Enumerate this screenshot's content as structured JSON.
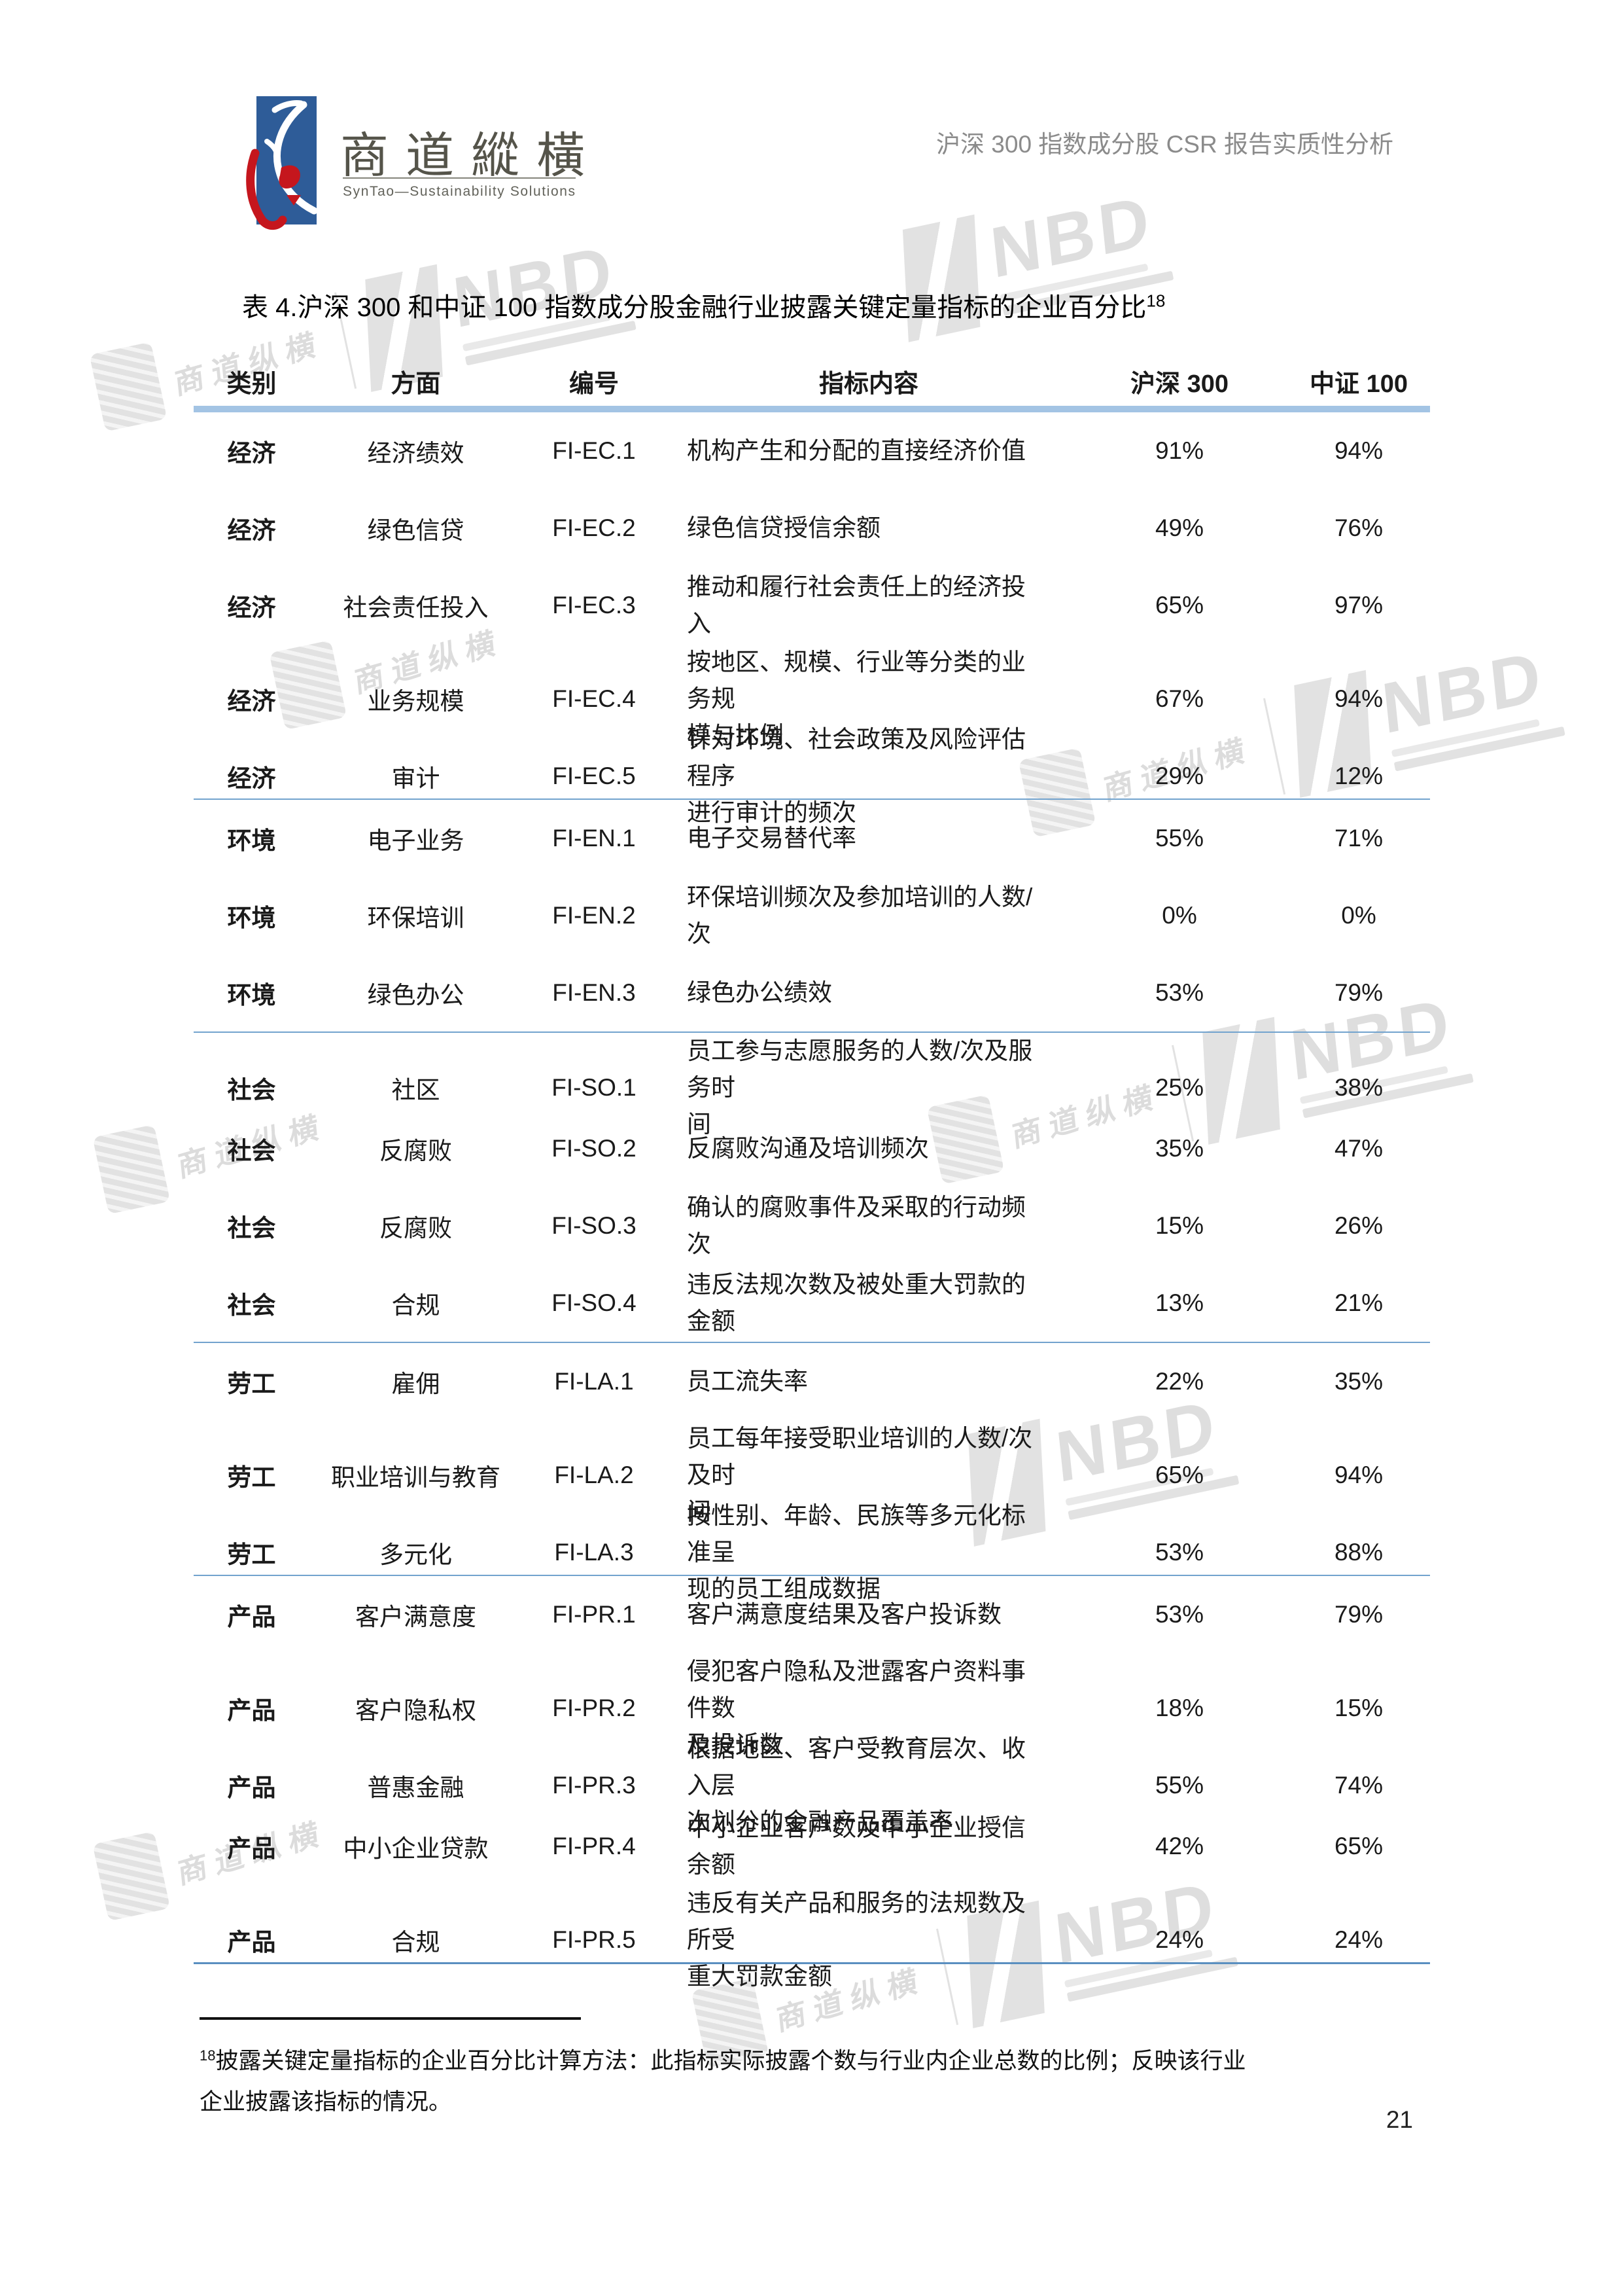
{
  "header": {
    "logo_cn": "商道縱橫",
    "logo_en": "SynTao—Sustainability Solutions",
    "doc_title": "沪深 300 指数成分股 CSR 报告实质性分析"
  },
  "table_title": {
    "text": "表 4.沪深 300 和中证 100 指数成分股金融行业披露关键定量指标的企业百分比",
    "footnote_ref": "18"
  },
  "table": {
    "columns": [
      "类别",
      "方面",
      "编号",
      "指标内容",
      "沪深 300",
      "中证 100"
    ],
    "sections": [
      {
        "name": "经济",
        "rows": [
          {
            "category": "经济",
            "aspect": "经济绩效",
            "code": "FI-EC.1",
            "indicator": "机构产生和分配的直接经济价值",
            "hs300": "91%",
            "zz100": "94%"
          },
          {
            "category": "经济",
            "aspect": "绿色信贷",
            "code": "FI-EC.2",
            "indicator": "绿色信贷授信余额",
            "hs300": "49%",
            "zz100": "76%"
          },
          {
            "category": "经济",
            "aspect": "社会责任投入",
            "code": "FI-EC.3",
            "indicator": "推动和履行社会责任上的经济投入",
            "hs300": "65%",
            "zz100": "97%"
          },
          {
            "category": "经济",
            "aspect": "业务规模",
            "code": "FI-EC.4",
            "indicator": "按地区、规模、行业等分类的业务规\n模与比例",
            "hs300": "67%",
            "zz100": "94%"
          },
          {
            "category": "经济",
            "aspect": "审计",
            "code": "FI-EC.5",
            "indicator": "针对环境、社会政策及风险评估程序\n进行审计的频次",
            "hs300": "29%",
            "zz100": "12%"
          }
        ]
      },
      {
        "name": "环境",
        "rows": [
          {
            "category": "环境",
            "aspect": "电子业务",
            "code": "FI-EN.1",
            "indicator": "电子交易替代率",
            "hs300": "55%",
            "zz100": "71%"
          },
          {
            "category": "环境",
            "aspect": "环保培训",
            "code": "FI-EN.2",
            "indicator": "环保培训频次及参加培训的人数/次",
            "hs300": "0%",
            "zz100": "0%"
          },
          {
            "category": "环境",
            "aspect": "绿色办公",
            "code": "FI-EN.3",
            "indicator": "绿色办公绩效",
            "hs300": "53%",
            "zz100": "79%"
          }
        ]
      },
      {
        "name": "社会",
        "rows": [
          {
            "category": "社会",
            "aspect": "社区",
            "code": "FI-SO.1",
            "indicator": "员工参与志愿服务的人数/次及服务时\n间",
            "hs300": "25%",
            "zz100": "38%"
          },
          {
            "category": "社会",
            "aspect": "反腐败",
            "code": "FI-SO.2",
            "indicator": "反腐败沟通及培训频次",
            "hs300": "35%",
            "zz100": "47%"
          },
          {
            "category": "社会",
            "aspect": "反腐败",
            "code": "FI-SO.3",
            "indicator": "确认的腐败事件及采取的行动频次",
            "hs300": "15%",
            "zz100": "26%"
          },
          {
            "category": "社会",
            "aspect": "合规",
            "code": "FI-SO.4",
            "indicator": "违反法规次数及被处重大罚款的金额",
            "hs300": "13%",
            "zz100": "21%"
          }
        ]
      },
      {
        "name": "劳工",
        "rows": [
          {
            "category": "劳工",
            "aspect": "雇佣",
            "code": "FI-LA.1",
            "indicator": "员工流失率",
            "hs300": "22%",
            "zz100": "35%"
          },
          {
            "category": "劳工",
            "aspect": "职业培训与教育",
            "code": "FI-LA.2",
            "indicator": "员工每年接受职业培训的人数/次及时\n间",
            "hs300": "65%",
            "zz100": "94%"
          },
          {
            "category": "劳工",
            "aspect": "多元化",
            "code": "FI-LA.3",
            "indicator": "按性别、年龄、民族等多元化标准呈\n现的员工组成数据",
            "hs300": "53%",
            "zz100": "88%"
          }
        ]
      },
      {
        "name": "产品",
        "rows": [
          {
            "category": "产品",
            "aspect": "客户满意度",
            "code": "FI-PR.1",
            "indicator": "客户满意度结果及客户投诉数",
            "hs300": "53%",
            "zz100": "79%"
          },
          {
            "category": "产品",
            "aspect": "客户隐私权",
            "code": "FI-PR.2",
            "indicator": "侵犯客户隐私及泄露客户资料事件数\n及投诉数",
            "hs300": "18%",
            "zz100": "15%"
          },
          {
            "category": "产品",
            "aspect": "普惠金融",
            "code": "FI-PR.3",
            "indicator": "根据地区、客户受教育层次、收入层\n次划分的金融产品覆盖率",
            "hs300": "55%",
            "zz100": "74%"
          },
          {
            "category": "产品",
            "aspect": "中小企业贷款",
            "code": "FI-PR.4",
            "indicator": "中小企业客户数及中小企业授信余额",
            "hs300": "42%",
            "zz100": "65%"
          },
          {
            "category": "产品",
            "aspect": "合规",
            "code": "FI-PR.5",
            "indicator": "违反有关产品和服务的法规数及所受\n重大罚款金额",
            "hs300": "24%",
            "zz100": "24%"
          }
        ]
      }
    ]
  },
  "footnote": {
    "ref": "18",
    "text": "披露关键定量指标的企业百分比计算方法：此指标实际披露个数与行业内企业总数的比例；反映该行业\n企业披露该指标的情况。"
  },
  "page_number": "21",
  "watermark": {
    "nbd_text": "NBD",
    "script_text": "商道纵横"
  },
  "colors": {
    "bar": "#a3c4e4",
    "sep": "#72a3ce",
    "sep_strong": "#5a8fc0",
    "logo_blue": "#2e5c98",
    "logo_red": "#c5161d",
    "header_gray": "#8b8b8b"
  }
}
